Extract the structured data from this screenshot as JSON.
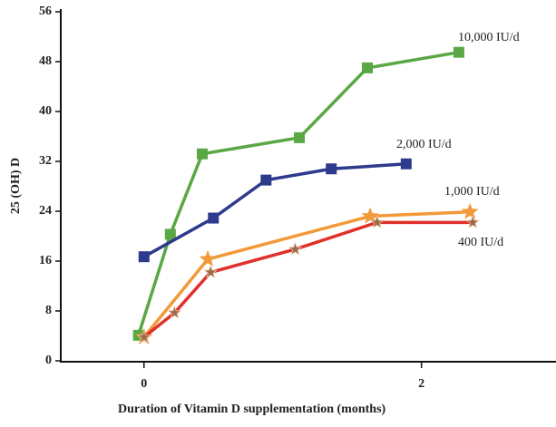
{
  "chart_data": {
    "type": "line",
    "x_label": "Duration of Vitamin D supplementation (months)",
    "y_label": "25 (OH) D",
    "xlim": [
      -0.6,
      2.97
    ],
    "xticks": [
      0,
      2
    ],
    "ylim": [
      0,
      56
    ],
    "yticks": [
      0,
      8,
      16,
      24,
      32,
      40,
      48,
      56
    ],
    "series": [
      {
        "name": "10,000 IU/d",
        "color": "#5aa845",
        "marker": "square",
        "x": [
          -0.04,
          0.19,
          0.42,
          1.12,
          1.61,
          2.27
        ],
        "values": [
          4.1,
          20.3,
          33.2,
          35.8,
          47,
          49.5
        ]
      },
      {
        "name": "2,000 IU/d",
        "color": "#2e3a8c",
        "marker": "square",
        "x": [
          0,
          0.5,
          0.88,
          1.35,
          1.89
        ],
        "values": [
          16.7,
          22.9,
          29,
          30.8,
          31.6
        ]
      },
      {
        "name": "1,000 IU/d",
        "color": "#f29a3a",
        "marker": "star",
        "x": [
          0,
          0.46,
          1.63,
          2.35
        ],
        "values": [
          3.8,
          16.3,
          23.2,
          23.9
        ]
      },
      {
        "name": "400 IU/d",
        "color": "#e0302a",
        "marker": "cross",
        "x": [
          0,
          0.22,
          0.48,
          1.09,
          1.68,
          2.37
        ],
        "values": [
          3.8,
          7.7,
          14.2,
          17.9,
          22.2,
          22.2
        ]
      }
    ]
  }
}
